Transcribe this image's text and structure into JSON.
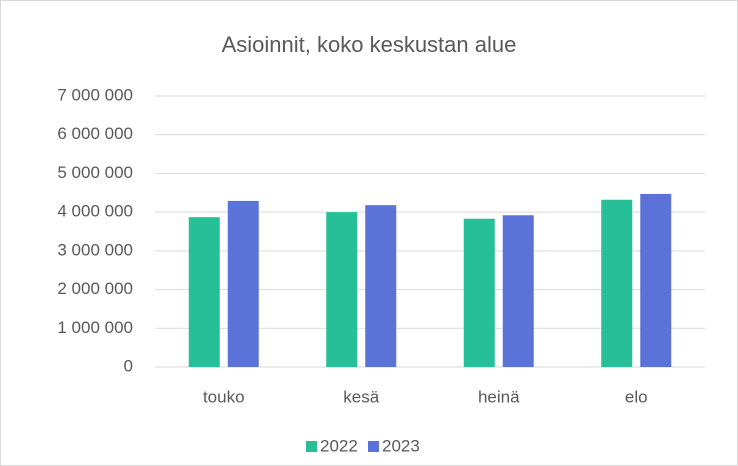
{
  "chart_data": {
    "type": "bar",
    "title": "Asioinnit, koko keskustan alue",
    "categories": [
      "touko",
      "kesä",
      "heinä",
      "elo"
    ],
    "series": [
      {
        "name": "2022",
        "color": "#26bf98",
        "values": [
          3870000,
          4000000,
          3830000,
          4320000
        ]
      },
      {
        "name": "2023",
        "color": "#5b73d9",
        "values": [
          4290000,
          4180000,
          3920000,
          4470000
        ]
      }
    ],
    "ylim": [
      0,
      7000000
    ],
    "yticks": [
      0,
      {
        "value": 1000000,
        "label": "1 000 000"
      },
      {
        "value": 2000000,
        "label": "2 000 000"
      },
      {
        "value": 3000000,
        "label": "3 000 000"
      },
      {
        "value": 4000000,
        "label": "4 000 000"
      },
      {
        "value": 5000000,
        "label": "5 000 000"
      },
      {
        "value": 6000000,
        "label": "6 000 000"
      },
      {
        "value": 7000000,
        "label": "7 000 000"
      }
    ],
    "grid": true,
    "legend": "bottom"
  }
}
